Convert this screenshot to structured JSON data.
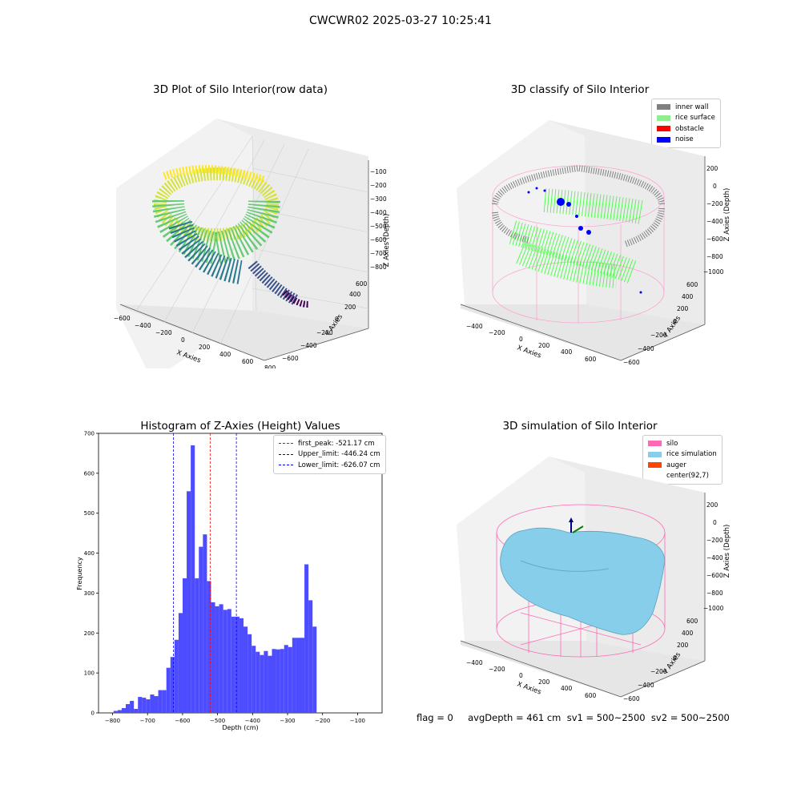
{
  "figure": {
    "suptitle": "CWCWR02 2025-03-27 10:25:41",
    "footer": "flag = 0     avgDepth = 461 cm  sv1 = 500~2500  sv2 = 500~2500"
  },
  "panels": {
    "raw": {
      "title": "3D Plot of Silo Interior(row data)",
      "xlabel": "X Axies",
      "ylabel": "Y Axies",
      "zlabel": "Z Axies (Depth)",
      "xticks": [
        "−600",
        "−400",
        "−200",
        "0",
        "200",
        "400",
        "600",
        "800"
      ],
      "yticks": [
        "−600",
        "−400",
        "−200",
        "0",
        "200",
        "400",
        "600"
      ],
      "zticks": [
        "−100",
        "−200",
        "−300",
        "−400",
        "−500",
        "−600",
        "−700",
        "−800"
      ]
    },
    "classify": {
      "title": "3D classify of Silo Interior",
      "xlabel": "X Axies",
      "ylabel": "Y Axies",
      "zlabel": "Z Axies (Depth)",
      "xticks": [
        "−400",
        "−200",
        "0",
        "200",
        "400",
        "600"
      ],
      "yticks": [
        "−600",
        "−400",
        "−200",
        "0",
        "200",
        "400",
        "600"
      ],
      "zticks": [
        "200",
        "0",
        "−200",
        "−400",
        "−600",
        "−800",
        "−1000"
      ],
      "legend": [
        {
          "label": "inner wall",
          "color": "#808080"
        },
        {
          "label": "rice surface",
          "color": "#90ee90"
        },
        {
          "label": "obstacle",
          "color": "#ff0000"
        },
        {
          "label": "noise",
          "color": "#0000ff"
        }
      ]
    },
    "simulation": {
      "title": "3D simulation of Silo Interior",
      "xlabel": "X Axies",
      "ylabel": "Y Axies",
      "zlabel": "Z Axies (Depth)",
      "xticks": [
        "−400",
        "−200",
        "0",
        "200",
        "400",
        "600"
      ],
      "yticks": [
        "−600",
        "−400",
        "−200",
        "0",
        "200",
        "400",
        "600"
      ],
      "zticks": [
        "200",
        "0",
        "−200",
        "−400",
        "−600",
        "−800",
        "−1000"
      ],
      "legend": [
        {
          "label": "silo",
          "color": "#ff69b4"
        },
        {
          "label": "rice simulation",
          "color": "#87ceeb"
        },
        {
          "label": "auger",
          "color": "#ff4500"
        },
        {
          "label": "center(92,7)",
          "color": "#ffffff"
        }
      ]
    }
  },
  "chart_data": [
    {
      "type": "bar",
      "title": "Histogram of Z-Axies (Height) Values",
      "xlabel": "Depth (cm)",
      "ylabel": "Frequency",
      "xlim": [
        -840,
        -30
      ],
      "ylim": [
        0,
        700
      ],
      "xticks": [
        -800,
        -700,
        -600,
        -500,
        -400,
        -300,
        -200,
        -100
      ],
      "yticks": [
        0,
        100,
        200,
        300,
        400,
        500,
        600,
        700
      ],
      "bin_width": 11.6,
      "bin_start": -797,
      "values": [
        5,
        7,
        12,
        22,
        30,
        10,
        40,
        38,
        34,
        46,
        42,
        57,
        57,
        113,
        140,
        183,
        250,
        337,
        555,
        670,
        337,
        416,
        447,
        330,
        277,
        267,
        272,
        258,
        260,
        241,
        241,
        237,
        216,
        197,
        168,
        153,
        145,
        155,
        143,
        160,
        159,
        160,
        170,
        165,
        188,
        188,
        188,
        372,
        282,
        216
      ],
      "bar_color": "#4d4dff",
      "vlines": [
        {
          "value": -521.17,
          "color": "#ff0000",
          "label": "first_peak: -521.17 cm"
        },
        {
          "value": -446.24,
          "color": "#0000ff",
          "label": "Upper_limit: -446.24 cm"
        },
        {
          "value": -626.07,
          "color": "#0000ff",
          "label": "Lower_limit: -626.07 cm"
        }
      ],
      "legend_position": "top-right"
    }
  ]
}
